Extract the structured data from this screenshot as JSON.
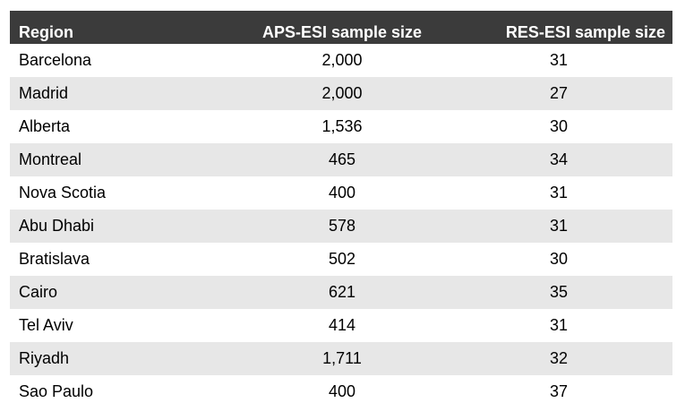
{
  "table": {
    "headers": {
      "region": "Region",
      "aps": "APS-ESI sample size",
      "res": "RES-ESI sample size"
    },
    "rows": [
      {
        "region": "Barcelona",
        "aps": "2,000",
        "res": "31"
      },
      {
        "region": "Madrid",
        "aps": "2,000",
        "res": "27"
      },
      {
        "region": "Alberta",
        "aps": "1,536",
        "res": "30"
      },
      {
        "region": "Montreal",
        "aps": "465",
        "res": "34"
      },
      {
        "region": "Nova Scotia",
        "aps": "400",
        "res": "31"
      },
      {
        "region": "Abu Dhabi",
        "aps": "578",
        "res": "31"
      },
      {
        "region": "Bratislava",
        "aps": "502",
        "res": "30"
      },
      {
        "region": "Cairo",
        "aps": "621",
        "res": "35"
      },
      {
        "region": "Tel Aviv",
        "aps": "414",
        "res": "31"
      },
      {
        "region": "Riyadh",
        "aps": "1,711",
        "res": "32"
      },
      {
        "region": "Sao Paulo",
        "aps": "400",
        "res": "37"
      }
    ],
    "colors": {
      "header_bg": "#3b3b3b",
      "shaded_row_bg": "#e7e7e7"
    }
  }
}
